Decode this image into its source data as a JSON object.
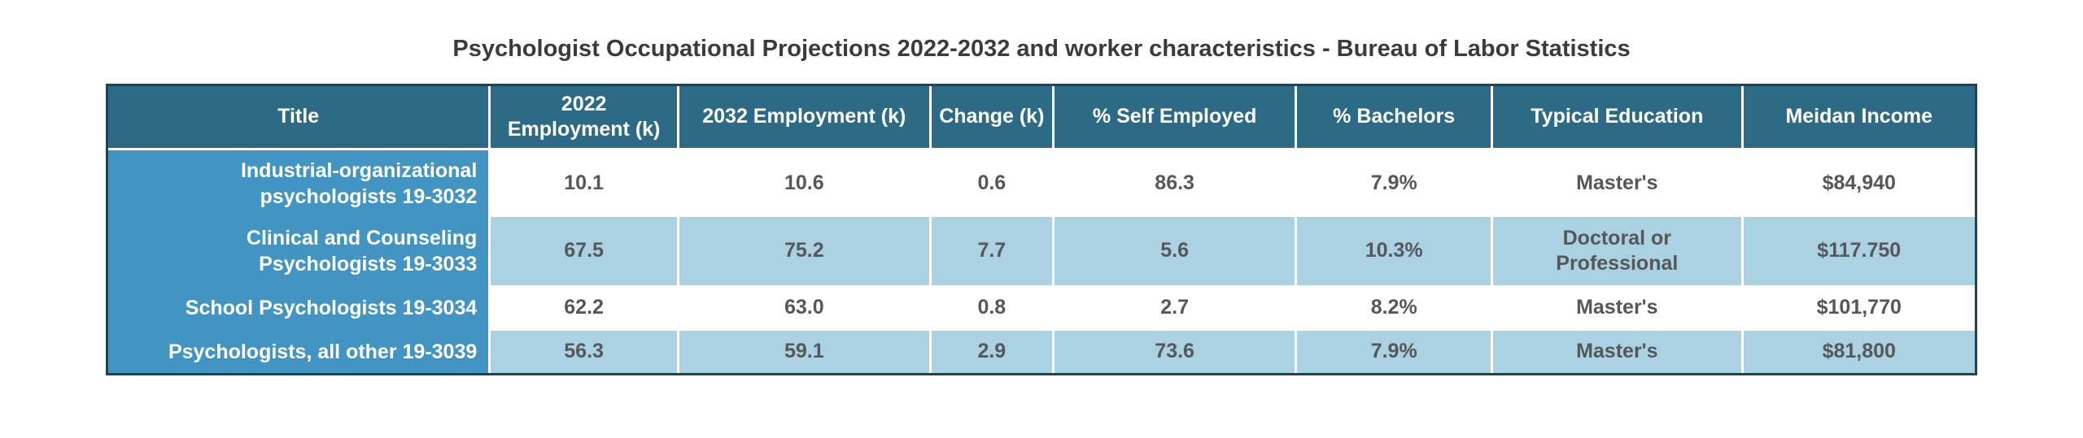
{
  "chart_data": {
    "type": "table",
    "title": "Psychologist Occupational Projections 2022-2032 and worker characteristics - Bureau of Labor Statistics",
    "columns": [
      "Title",
      "2022\nEmployment (k)",
      "2032 Employment (k)",
      "Change (k)",
      "% Self Employed",
      "% Bachelors",
      "Typical Education",
      "Meidan Income"
    ],
    "rows": [
      {
        "title": "Industrial-organizational psychologists 19-3032",
        "values": [
          "10.1",
          "10.6",
          "0.6",
          "86.3",
          "7.9%",
          "Master's",
          "$84,940"
        ]
      },
      {
        "title": "Clinical and Counseling Psychologists 19-3033",
        "values": [
          "67.5",
          "75.2",
          "7.7",
          "5.6",
          "10.3%",
          "Doctoral or Professional",
          "$117.750"
        ]
      },
      {
        "title": "School Psychologists 19-3034",
        "values": [
          "62.2",
          "63.0",
          "0.8",
          "2.7",
          "8.2%",
          "Master's",
          "$101,770"
        ]
      },
      {
        "title": "Psychologists, all other 19-3039",
        "values": [
          "56.3",
          "59.1",
          "2.9",
          "73.6",
          "7.9%",
          "Master's",
          "$81,800"
        ]
      }
    ]
  },
  "colors": {
    "header_bg": "#2d6a86",
    "title_column_bg": "#4294c3",
    "alt_row_bg": "#abd2e2",
    "row_bg": "#ffffff",
    "outer_border": "#1a4556",
    "header_text": "#ffffff",
    "body_text": "#55575b",
    "page_title_text": "#3b3b3d"
  }
}
